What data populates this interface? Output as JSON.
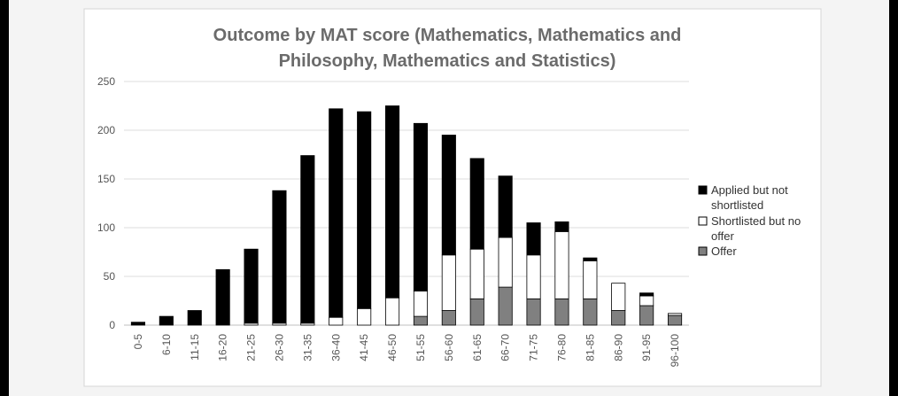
{
  "chart_data": {
    "type": "bar",
    "stacked": true,
    "title_lines": [
      "Outcome by MAT score (Mathematics, Mathematics and",
      "Philosophy, Mathematics and Statistics)"
    ],
    "xlabel": "",
    "ylabel": "",
    "ylim": [
      0,
      250
    ],
    "yticks": [
      0,
      50,
      100,
      150,
      200,
      250
    ],
    "grid": true,
    "legend_position": "right",
    "categories": [
      "0-5",
      "6-10",
      "11-15",
      "16-20",
      "21-25",
      "26-30",
      "31-35",
      "36-40",
      "41-45",
      "46-50",
      "51-55",
      "56-60",
      "61-65",
      "66-70",
      "71-75",
      "76-80",
      "81-85",
      "86-90",
      "91-95",
      "96-100"
    ],
    "series": [
      {
        "name": "Offer",
        "color": "#808080",
        "values": [
          0,
          0,
          0,
          0,
          0,
          0,
          0,
          0,
          0,
          0,
          9,
          15,
          27,
          39,
          27,
          27,
          27,
          15,
          20,
          10
        ]
      },
      {
        "name": "Shortlisted but no offer",
        "color": "#ffffff",
        "values": [
          0,
          0,
          0,
          0,
          2,
          2,
          2,
          8,
          17,
          28,
          26,
          57,
          51,
          51,
          45,
          69,
          39,
          28,
          10,
          2
        ]
      },
      {
        "name": "Applied but not shortlisted",
        "color": "#000000",
        "values": [
          3,
          9,
          15,
          57,
          76,
          136,
          172,
          214,
          202,
          197,
          172,
          123,
          93,
          63,
          33,
          10,
          3,
          0,
          3,
          0
        ]
      }
    ],
    "legend_entries": [
      {
        "label_lines": [
          "Applied but not",
          "shortlisted"
        ],
        "color": "#000000"
      },
      {
        "label_lines": [
          "Shortlisted but no",
          "offer"
        ],
        "color": "#ffffff"
      },
      {
        "label_lines": [
          "Offer"
        ],
        "color": "#808080"
      }
    ]
  }
}
